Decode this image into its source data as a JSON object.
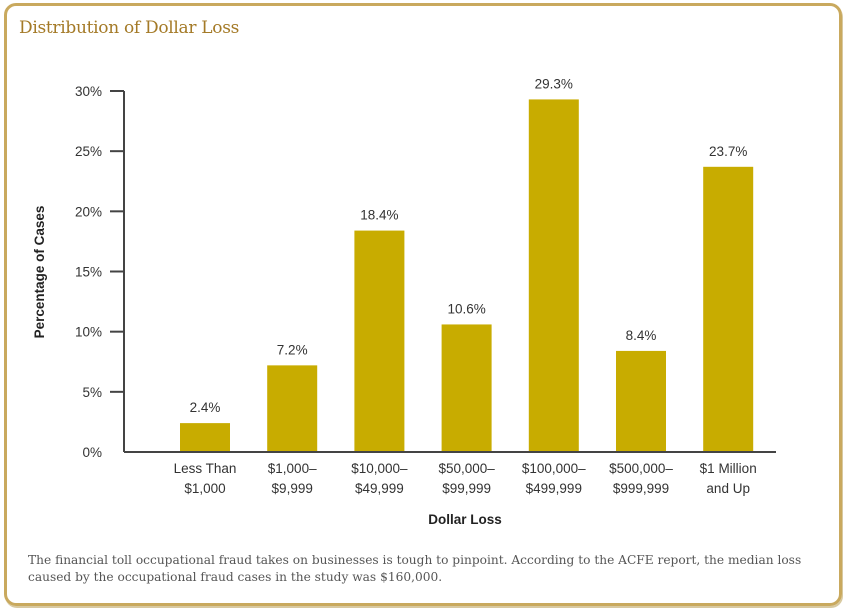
{
  "title": "Distribution of Dollar Loss",
  "caption": "The financial toll occupational fraud takes on businesses is tough to pinpoint. According to the ACFE report, the median loss caused by the occupational fraud cases in the study was $160,000.",
  "colors": {
    "bar": "#C8AC00",
    "frame": "#C9A95E",
    "title": "#A47A27",
    "axis": "#444444"
  },
  "chart_data": {
    "type": "bar",
    "title": "Distribution of Dollar Loss",
    "xlabel": "Dollar Loss",
    "ylabel": "Percentage of Cases",
    "ylim": [
      0,
      30
    ],
    "yticks": [
      0,
      5,
      10,
      15,
      20,
      25,
      30
    ],
    "ytick_labels": [
      "0%",
      "5%",
      "10%",
      "15%",
      "20%",
      "25%",
      "30%"
    ],
    "categories": [
      [
        "Less Than",
        "$1,000"
      ],
      [
        "$1,000–",
        "$9,999"
      ],
      [
        "$10,000–",
        "$49,999"
      ],
      [
        "$50,000–",
        "$99,999"
      ],
      [
        "$100,000–",
        "$499,999"
      ],
      [
        "$500,000–",
        "$999,999"
      ],
      [
        "$1 Million",
        "and Up"
      ]
    ],
    "values": [
      2.4,
      7.2,
      18.4,
      10.6,
      29.3,
      8.4,
      23.7
    ],
    "value_labels": [
      "2.4%",
      "7.2%",
      "18.4%",
      "10.6%",
      "29.3%",
      "8.4%",
      "23.7%"
    ],
    "grid": false,
    "legend": "none"
  }
}
